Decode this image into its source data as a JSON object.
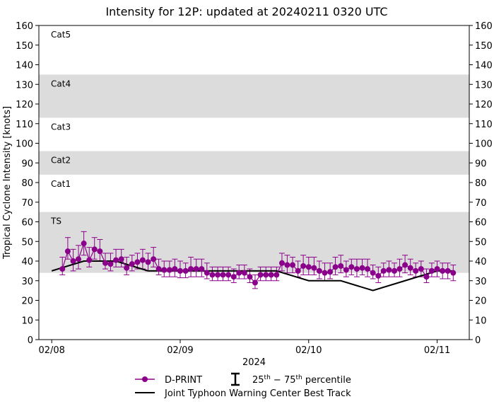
{
  "chart_data": {
    "type": "line",
    "title": "Intensity for 12P: updated at 20240211 0320 UTC",
    "ylabel": "Tropical Cyclone Intensity [knots]",
    "xlabel": "2024",
    "ylim": [
      0,
      160
    ],
    "xlim": [
      -0.1,
      3.25
    ],
    "yticks": [
      0,
      10,
      20,
      30,
      40,
      50,
      60,
      70,
      80,
      90,
      100,
      110,
      120,
      130,
      140,
      150,
      160
    ],
    "xticks": [
      {
        "value": 0,
        "label": "02/08"
      },
      {
        "value": 1,
        "label": "02/09"
      },
      {
        "value": 2,
        "label": "02/10"
      },
      {
        "value": 3,
        "label": "02/11"
      }
    ],
    "categories": [
      {
        "label": "TS",
        "low": 34,
        "high": 65,
        "shaded": true
      },
      {
        "label": "Cat1",
        "low": 65,
        "high": 84,
        "shaded": false
      },
      {
        "label": "Cat2",
        "low": 84,
        "high": 96,
        "shaded": true
      },
      {
        "label": "Cat3",
        "low": 96,
        "high": 113,
        "shaded": false
      },
      {
        "label": "Cat4",
        "low": 113,
        "high": 135,
        "shaded": true
      },
      {
        "label": "Cat5",
        "low": 135,
        "high": 160,
        "shaded": false
      }
    ],
    "colors": {
      "dprint": "#8b008b",
      "best_track": "#000000",
      "shade": "#dcdcdc"
    },
    "best_track": {
      "name": "Joint Typhoon Warning Center Best Track",
      "x": [
        0.0,
        0.25,
        0.5,
        0.75,
        1.0,
        1.25,
        1.5,
        1.75,
        2.0,
        2.25,
        2.5,
        2.75,
        3.0,
        3.125
      ],
      "y": [
        35,
        40,
        40,
        35,
        35,
        35,
        35,
        35,
        30,
        30,
        25,
        30,
        35,
        35
      ]
    },
    "dprint": {
      "name": "D-PRINT",
      "x": [
        0.083,
        0.125,
        0.167,
        0.208,
        0.25,
        0.292,
        0.333,
        0.375,
        0.417,
        0.458,
        0.5,
        0.542,
        0.583,
        0.625,
        0.667,
        0.708,
        0.75,
        0.792,
        0.833,
        0.875,
        0.917,
        0.958,
        1.0,
        1.042,
        1.083,
        1.125,
        1.167,
        1.208,
        1.25,
        1.292,
        1.333,
        1.375,
        1.417,
        1.458,
        1.5,
        1.542,
        1.583,
        1.625,
        1.667,
        1.708,
        1.75,
        1.792,
        1.833,
        1.875,
        1.917,
        1.958,
        2.0,
        2.042,
        2.083,
        2.125,
        2.167,
        2.208,
        2.25,
        2.292,
        2.333,
        2.375,
        2.417,
        2.458,
        2.5,
        2.542,
        2.583,
        2.625,
        2.667,
        2.708,
        2.75,
        2.792,
        2.833,
        2.875,
        2.917,
        2.958,
        3.0,
        3.042,
        3.083,
        3.125
      ],
      "y": [
        36,
        45,
        40,
        41,
        49,
        40.5,
        46,
        45,
        39,
        38.5,
        40.5,
        41,
        36.5,
        38.5,
        39.5,
        40.5,
        39.5,
        41,
        36,
        35.5,
        35.5,
        36,
        35,
        35,
        36,
        36,
        36,
        34,
        33,
        33,
        33,
        33,
        32,
        34,
        34,
        32,
        29,
        33,
        33,
        33,
        33,
        39,
        38,
        38,
        35,
        37.5,
        37,
        36.5,
        35,
        34,
        34.5,
        37,
        37.5,
        35.5,
        37,
        36,
        36.5,
        36,
        34,
        32.5,
        35,
        35.5,
        35,
        36,
        38,
        36.5,
        35,
        36,
        32,
        35,
        36,
        35,
        35,
        34
      ],
      "q25": [
        33,
        41,
        35,
        36,
        43,
        37,
        41,
        40,
        36,
        35,
        37,
        37,
        33,
        35,
        36,
        36,
        35,
        37,
        33,
        32,
        32,
        32,
        31.5,
        31.5,
        32,
        32,
        32,
        31,
        30,
        30,
        30,
        30,
        29,
        31,
        31,
        29,
        26,
        30,
        30,
        30,
        30,
        35,
        34,
        34,
        32,
        33,
        33,
        33,
        31,
        30,
        31,
        33,
        34,
        32,
        33,
        32,
        33,
        32,
        31,
        29,
        32,
        32,
        32,
        32,
        34,
        33,
        32,
        32,
        29,
        32,
        32,
        31,
        31,
        30
      ],
      "q75": [
        42,
        52,
        46,
        48,
        55,
        47,
        52,
        51,
        44,
        44,
        46,
        46,
        42,
        43,
        44,
        46,
        44,
        47,
        41,
        40,
        40,
        41,
        40,
        39,
        42,
        41,
        41,
        39,
        37,
        37,
        37,
        37,
        36,
        38,
        38,
        36,
        33,
        37,
        37,
        37,
        37,
        44,
        43,
        42,
        40,
        43,
        42,
        42,
        40,
        39,
        39,
        42,
        43,
        40,
        41,
        41,
        41,
        41,
        38,
        37,
        39,
        40,
        39,
        41,
        43,
        41,
        39,
        40,
        36,
        39,
        40,
        39,
        39,
        38
      ]
    },
    "legend": {
      "dprint_label": "D-PRINT",
      "percentile_label": "25th − 75th percentile",
      "best_track_label": "Joint Typhoon Warning Center Best Track",
      "placement": "bottom-center"
    }
  }
}
